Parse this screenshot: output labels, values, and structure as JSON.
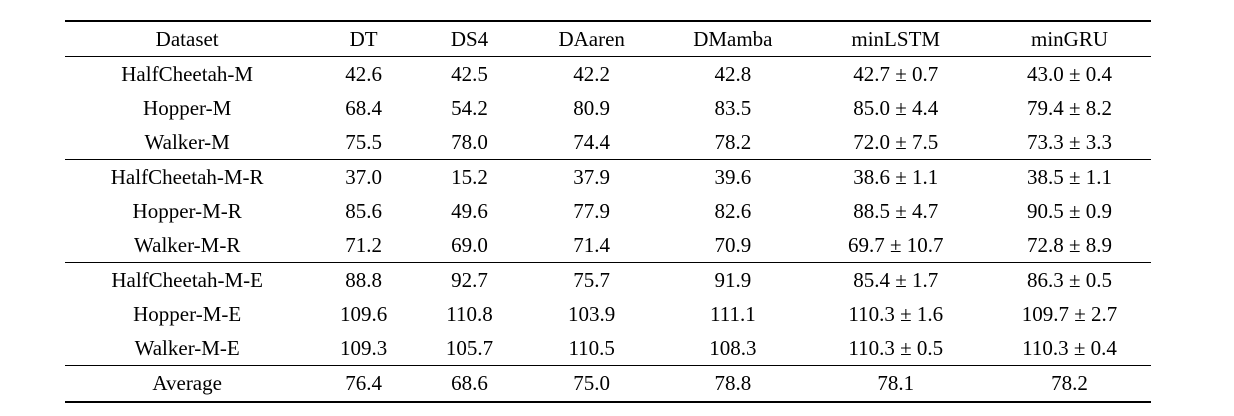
{
  "table": {
    "columns": [
      "Dataset",
      "DT",
      "DS4",
      "DAaren",
      "DMamba",
      "minLSTM",
      "minGRU"
    ],
    "groups": [
      [
        [
          "HalfCheetah-M",
          "42.6",
          "42.5",
          "42.2",
          "42.8",
          "42.7 ± 0.7",
          "43.0 ± 0.4"
        ],
        [
          "Hopper-M",
          "68.4",
          "54.2",
          "80.9",
          "83.5",
          "85.0 ± 4.4",
          "79.4 ± 8.2"
        ],
        [
          "Walker-M",
          "75.5",
          "78.0",
          "74.4",
          "78.2",
          "72.0 ± 7.5",
          "73.3 ± 3.3"
        ]
      ],
      [
        [
          "HalfCheetah-M-R",
          "37.0",
          "15.2",
          "37.9",
          "39.6",
          "38.6 ± 1.1",
          "38.5 ± 1.1"
        ],
        [
          "Hopper-M-R",
          "85.6",
          "49.6",
          "77.9",
          "82.6",
          "88.5 ± 4.7",
          "90.5 ± 0.9"
        ],
        [
          "Walker-M-R",
          "71.2",
          "69.0",
          "71.4",
          "70.9",
          "69.7 ± 10.7",
          "72.8 ± 8.9"
        ]
      ],
      [
        [
          "HalfCheetah-M-E",
          "88.8",
          "92.7",
          "75.7",
          "91.9",
          "85.4 ± 1.7",
          "86.3 ± 0.5"
        ],
        [
          "Hopper-M-E",
          "109.6",
          "110.8",
          "103.9",
          "111.1",
          "110.3 ± 1.6",
          "109.7 ± 2.7"
        ],
        [
          "Walker-M-E",
          "109.3",
          "105.7",
          "110.5",
          "108.3",
          "110.3 ± 0.5",
          "110.3 ± 0.4"
        ]
      ]
    ],
    "footer": [
      "Average",
      "76.4",
      "68.6",
      "75.0",
      "78.8",
      "78.1",
      "78.2"
    ]
  }
}
